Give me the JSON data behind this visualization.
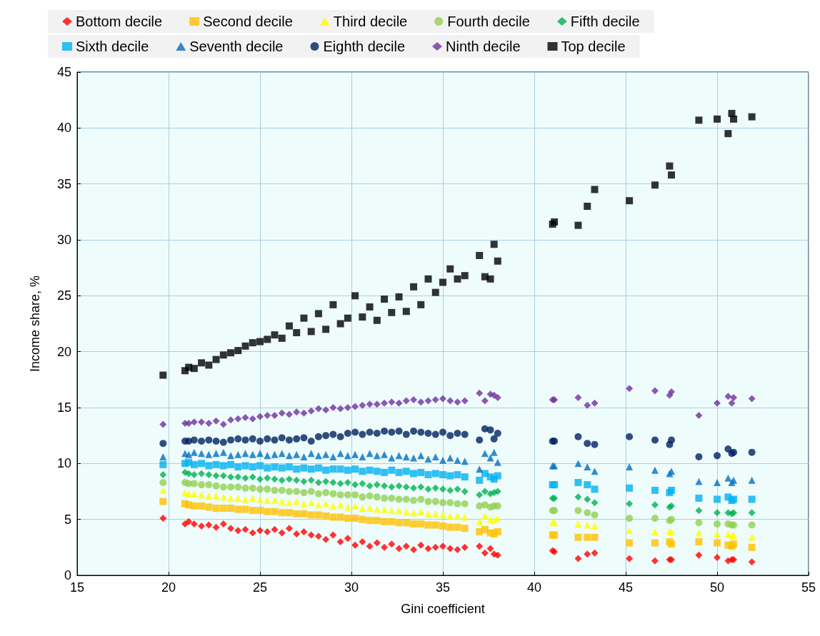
{
  "chart_data": {
    "type": "scatter",
    "xlabel": "Gini coefficient",
    "ylabel": "Income share, %",
    "xlim": [
      15,
      55
    ],
    "xticks": [
      15,
      20,
      25,
      30,
      35,
      40,
      45,
      50,
      55
    ],
    "ylim": [
      0,
      45
    ],
    "yticks": [
      0,
      5,
      10,
      15,
      20,
      25,
      30,
      35,
      40,
      45
    ],
    "grid": true,
    "legend": "top",
    "x": [
      19.7,
      20.9,
      21.1,
      21.4,
      21.8,
      22.2,
      22.6,
      23.0,
      23.4,
      23.8,
      24.2,
      24.6,
      25.0,
      25.4,
      25.8,
      26.2,
      26.6,
      27.0,
      27.4,
      27.8,
      28.2,
      28.6,
      29.0,
      29.4,
      29.8,
      30.2,
      30.6,
      31.0,
      31.4,
      31.8,
      32.2,
      32.6,
      33.0,
      33.4,
      33.8,
      34.2,
      34.6,
      35.0,
      35.4,
      35.8,
      36.2,
      37.0,
      37.3,
      37.6,
      37.8,
      38.0,
      41.0,
      41.1,
      42.4,
      42.9,
      43.3,
      45.2,
      46.6,
      47.4,
      47.5,
      49.0,
      50.0,
      50.6,
      50.8,
      50.9,
      51.9
    ],
    "series": [
      {
        "name": "Bottom decile",
        "color": "#ff0000",
        "marker": "diamond",
        "values": [
          5.1,
          4.6,
          4.8,
          4.6,
          4.4,
          4.5,
          4.3,
          4.6,
          4.2,
          4.0,
          4.1,
          3.8,
          4.0,
          3.9,
          4.1,
          3.8,
          4.2,
          3.7,
          3.9,
          3.6,
          3.5,
          3.2,
          3.6,
          3.0,
          3.3,
          2.7,
          3.0,
          2.6,
          2.9,
          2.5,
          2.8,
          2.4,
          2.6,
          2.3,
          2.7,
          2.4,
          2.5,
          2.6,
          2.4,
          2.3,
          2.5,
          2.6,
          2.0,
          2.4,
          1.9,
          1.8,
          2.2,
          2.1,
          1.5,
          1.9,
          2.0,
          1.5,
          1.3,
          1.4,
          1.4,
          1.8,
          1.6,
          1.3,
          1.4,
          1.4,
          1.2
        ]
      },
      {
        "name": "Second decile",
        "color": "#ffc000",
        "marker": "square",
        "values": [
          6.6,
          6.4,
          6.3,
          6.2,
          6.2,
          6.1,
          6.0,
          6.0,
          6.0,
          5.9,
          5.9,
          5.8,
          5.8,
          5.7,
          5.7,
          5.6,
          5.6,
          5.5,
          5.5,
          5.4,
          5.4,
          5.3,
          5.2,
          5.2,
          5.1,
          5.1,
          5.0,
          4.9,
          4.9,
          4.8,
          4.8,
          4.7,
          4.7,
          4.6,
          4.6,
          4.5,
          4.5,
          4.4,
          4.3,
          4.3,
          4.2,
          3.9,
          4.1,
          3.8,
          3.7,
          3.9,
          3.6,
          3.6,
          3.4,
          3.4,
          3.4,
          2.9,
          2.9,
          3.0,
          2.8,
          3.0,
          2.9,
          2.7,
          2.6,
          2.8,
          2.5
        ]
      },
      {
        "name": "Third decile",
        "color": "#ffff00",
        "marker": "triangle",
        "values": [
          7.6,
          7.4,
          7.3,
          7.3,
          7.2,
          7.1,
          7.1,
          7.0,
          6.9,
          6.9,
          6.8,
          6.9,
          6.8,
          6.7,
          6.7,
          6.6,
          6.5,
          6.6,
          6.4,
          6.5,
          6.3,
          6.4,
          6.2,
          6.3,
          6.1,
          6.2,
          6.0,
          6.0,
          5.9,
          5.9,
          5.8,
          5.8,
          5.7,
          5.6,
          5.7,
          5.5,
          5.5,
          5.4,
          5.3,
          5.3,
          5.2,
          4.8,
          5.3,
          5.0,
          4.9,
          5.1,
          4.7,
          4.7,
          4.6,
          4.5,
          4.4,
          4.0,
          3.9,
          3.9,
          3.9,
          3.8,
          3.7,
          3.7,
          3.5,
          3.6,
          3.4
        ]
      },
      {
        "name": "Fourth decile",
        "color": "#92d050",
        "marker": "circle",
        "values": [
          8.3,
          8.3,
          8.2,
          8.2,
          8.1,
          8.1,
          8.0,
          7.9,
          7.9,
          7.9,
          7.8,
          7.8,
          7.7,
          7.7,
          7.6,
          7.6,
          7.5,
          7.5,
          7.4,
          7.5,
          7.3,
          7.4,
          7.3,
          7.2,
          7.2,
          7.2,
          7.0,
          7.1,
          7.0,
          6.9,
          6.9,
          6.8,
          6.8,
          6.7,
          6.8,
          6.6,
          6.6,
          6.5,
          6.5,
          6.4,
          6.4,
          6.2,
          6.3,
          6.1,
          6.2,
          6.2,
          5.8,
          5.8,
          5.8,
          5.6,
          5.4,
          5.1,
          5.1,
          4.9,
          5.0,
          4.7,
          4.6,
          4.6,
          4.5,
          4.5,
          4.5
        ]
      },
      {
        "name": "Fifth decile",
        "color": "#00b050",
        "marker": "diamond",
        "values": [
          9.0,
          9.2,
          9.1,
          9.0,
          9.1,
          9.0,
          8.9,
          8.9,
          8.8,
          8.8,
          8.7,
          8.8,
          8.6,
          8.7,
          8.6,
          8.5,
          8.6,
          8.5,
          8.4,
          8.5,
          8.3,
          8.4,
          8.3,
          8.2,
          8.3,
          8.1,
          8.2,
          8.0,
          8.1,
          8.0,
          7.9,
          8.0,
          7.9,
          7.8,
          7.9,
          7.7,
          7.8,
          7.7,
          7.6,
          7.7,
          7.5,
          7.2,
          7.5,
          7.3,
          7.4,
          7.5,
          6.9,
          6.9,
          7.0,
          6.8,
          6.5,
          6.4,
          6.3,
          6.1,
          6.2,
          5.8,
          5.6,
          5.6,
          5.5,
          5.6,
          5.6
        ]
      },
      {
        "name": "Sixth decile",
        "color": "#00b0f0",
        "marker": "square",
        "values": [
          9.9,
          10.0,
          10.1,
          9.9,
          10.0,
          9.8,
          9.9,
          9.8,
          9.9,
          9.7,
          9.8,
          9.7,
          9.8,
          9.6,
          9.7,
          9.6,
          9.7,
          9.5,
          9.6,
          9.5,
          9.6,
          9.4,
          9.5,
          9.5,
          9.4,
          9.5,
          9.3,
          9.4,
          9.3,
          9.2,
          9.4,
          9.2,
          9.3,
          9.1,
          9.2,
          9.0,
          9.1,
          9.0,
          8.9,
          9.0,
          8.8,
          8.5,
          9.1,
          8.8,
          8.6,
          8.9,
          8.1,
          8.1,
          8.3,
          8.1,
          7.7,
          7.8,
          7.6,
          7.4,
          7.6,
          6.9,
          6.8,
          7.0,
          6.7,
          6.8,
          6.8
        ]
      },
      {
        "name": "Seventh decile",
        "color": "#0070c0",
        "marker": "triangle",
        "values": [
          10.6,
          10.9,
          10.8,
          11.0,
          10.9,
          10.8,
          10.9,
          11.0,
          10.7,
          10.8,
          10.9,
          10.8,
          10.9,
          10.7,
          10.8,
          10.9,
          10.7,
          10.8,
          10.6,
          10.9,
          10.7,
          10.8,
          10.6,
          10.9,
          10.7,
          10.8,
          10.6,
          10.9,
          10.7,
          10.8,
          10.5,
          10.7,
          10.6,
          10.5,
          10.7,
          10.4,
          10.6,
          10.3,
          10.5,
          10.3,
          10.2,
          9.5,
          10.9,
          10.5,
          11.0,
          10.1,
          9.8,
          9.8,
          10.0,
          9.7,
          9.3,
          9.7,
          9.4,
          9.1,
          9.3,
          8.4,
          8.3,
          8.7,
          8.3,
          8.5,
          8.5
        ]
      },
      {
        "name": "Eighth decile",
        "color": "#002060",
        "marker": "circle",
        "values": [
          11.8,
          12.0,
          12.0,
          12.1,
          12.0,
          12.1,
          12.0,
          11.9,
          12.1,
          12.2,
          12.1,
          12.2,
          12.0,
          12.2,
          12.1,
          12.3,
          12.1,
          12.2,
          12.3,
          12.0,
          12.4,
          12.5,
          12.6,
          12.4,
          12.7,
          12.8,
          12.6,
          12.8,
          12.7,
          12.9,
          12.8,
          12.9,
          12.6,
          12.9,
          12.8,
          12.7,
          12.6,
          12.8,
          12.5,
          12.7,
          12.6,
          12.1,
          13.1,
          13.0,
          12.2,
          12.7,
          12.0,
          12.0,
          12.4,
          11.8,
          11.7,
          12.4,
          12.1,
          11.7,
          12.1,
          10.6,
          10.7,
          11.3,
          10.9,
          11.0,
          11.0
        ]
      },
      {
        "name": "Ninth decile",
        "color": "#7030a0",
        "marker": "diamond",
        "values": [
          13.5,
          13.6,
          13.6,
          13.7,
          13.7,
          13.6,
          13.8,
          13.5,
          13.9,
          14.0,
          14.1,
          14.0,
          14.2,
          14.3,
          14.3,
          14.5,
          14.4,
          14.6,
          14.5,
          14.7,
          14.9,
          14.8,
          15.0,
          14.9,
          15.0,
          15.1,
          15.2,
          15.3,
          15.3,
          15.4,
          15.5,
          15.4,
          15.6,
          15.7,
          15.5,
          15.6,
          15.7,
          15.8,
          15.6,
          15.5,
          15.6,
          16.3,
          15.6,
          16.2,
          16.1,
          15.9,
          15.7,
          15.7,
          15.9,
          15.2,
          15.4,
          16.7,
          16.5,
          16.1,
          16.4,
          14.3,
          15.4,
          16.0,
          15.4,
          15.9,
          15.8
        ]
      },
      {
        "name": "Top decile",
        "color": "#000000",
        "marker": "square",
        "values": [
          17.9,
          18.3,
          18.6,
          18.5,
          19.0,
          18.8,
          19.3,
          19.7,
          19.9,
          20.1,
          20.5,
          20.8,
          20.9,
          21.1,
          21.5,
          21.2,
          22.3,
          21.7,
          23.0,
          21.8,
          23.4,
          22.0,
          24.2,
          22.5,
          23.0,
          25.0,
          23.1,
          24.0,
          22.8,
          24.7,
          23.5,
          24.9,
          23.6,
          25.8,
          24.2,
          26.5,
          25.3,
          26.2,
          27.4,
          26.5,
          26.8,
          28.6,
          26.7,
          26.5,
          29.6,
          28.1,
          31.4,
          31.6,
          31.3,
          33.0,
          34.5,
          33.5,
          34.9,
          36.6,
          35.8,
          40.7,
          40.8,
          39.5,
          41.3,
          40.8,
          41.0
        ]
      }
    ]
  }
}
